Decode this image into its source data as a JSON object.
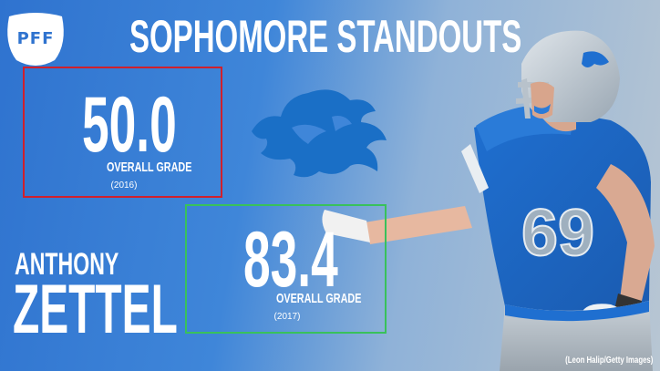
{
  "logo": {
    "text": "PFF",
    "icon": "pff-logo-icon"
  },
  "title": "SOPHOMORE STANDOUTS",
  "player": {
    "first_name": "ANTHONY",
    "last_name": "ZETTEL",
    "jersey_number": "69"
  },
  "grade_2016": {
    "value": "50.0",
    "label": "OVERALL GRADE",
    "year": "(2016)"
  },
  "grade_2017": {
    "value": "83.4",
    "label": "OVERALL GRADE",
    "year": "(2017)"
  },
  "team_logo_icon": "lion-logo-icon",
  "photo_credit": "(Leon Halip/Getty Images)",
  "colors": {
    "background_blue": "#2f73cf",
    "box_2016_border": "#d0202c",
    "box_2017_border": "#39c15b",
    "text": "#ffffff"
  }
}
